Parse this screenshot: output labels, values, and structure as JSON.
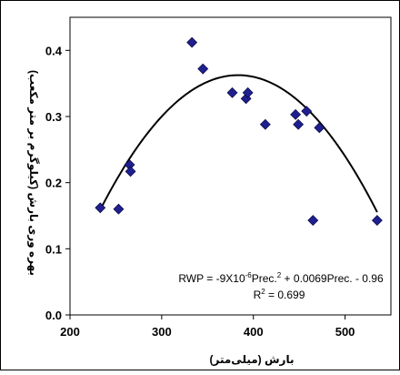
{
  "chart_data": {
    "type": "scatter",
    "xlabel": "بارش (میلی‌متر)",
    "ylabel": "بهره وری بارش (کیلوگرم بر متر مکعب)",
    "xlim": [
      200,
      550
    ],
    "ylim": [
      0,
      0.45
    ],
    "xticks": [
      "200",
      "300",
      "400",
      "500"
    ],
    "yticks": [
      "0.0",
      "0.1",
      "0.2",
      "0.3",
      "0.4"
    ],
    "grid": false,
    "marker_color": "#1f1f8f",
    "trendline_color": "#000000",
    "series": [
      {
        "marker": "diamond",
        "points": [
          {
            "x": 233,
            "y": 0.162
          },
          {
            "x": 253,
            "y": 0.16
          },
          {
            "x": 265,
            "y": 0.227
          },
          {
            "x": 266,
            "y": 0.217
          },
          {
            "x": 333,
            "y": 0.412
          },
          {
            "x": 345,
            "y": 0.372
          },
          {
            "x": 377,
            "y": 0.336
          },
          {
            "x": 392,
            "y": 0.327
          },
          {
            "x": 394,
            "y": 0.336
          },
          {
            "x": 413,
            "y": 0.288
          },
          {
            "x": 446,
            "y": 0.303
          },
          {
            "x": 449,
            "y": 0.288
          },
          {
            "x": 458,
            "y": 0.308
          },
          {
            "x": 465,
            "y": 0.143
          },
          {
            "x": 472,
            "y": 0.283
          },
          {
            "x": 535,
            "y": 0.143
          }
        ]
      }
    ],
    "trendline": {
      "type": "polynomial-2",
      "coefficients": {
        "a": -9e-06,
        "b": 0.0069,
        "c": -0.96
      },
      "x_range": [
        233,
        535
      ]
    },
    "annotations": {
      "equation": "RWP = -9X10-6Prec.2 + 0.0069Prec. - 0.96",
      "equation_parts": {
        "before_sup1": "RWP = -9X10",
        "sup1": "-6",
        "mid": "Prec.",
        "sup2": "2",
        "after": " + 0.0069Prec. - 0.96"
      },
      "r2_parts": {
        "base": "R",
        "sup": "2",
        "value": " = 0.699"
      }
    }
  }
}
